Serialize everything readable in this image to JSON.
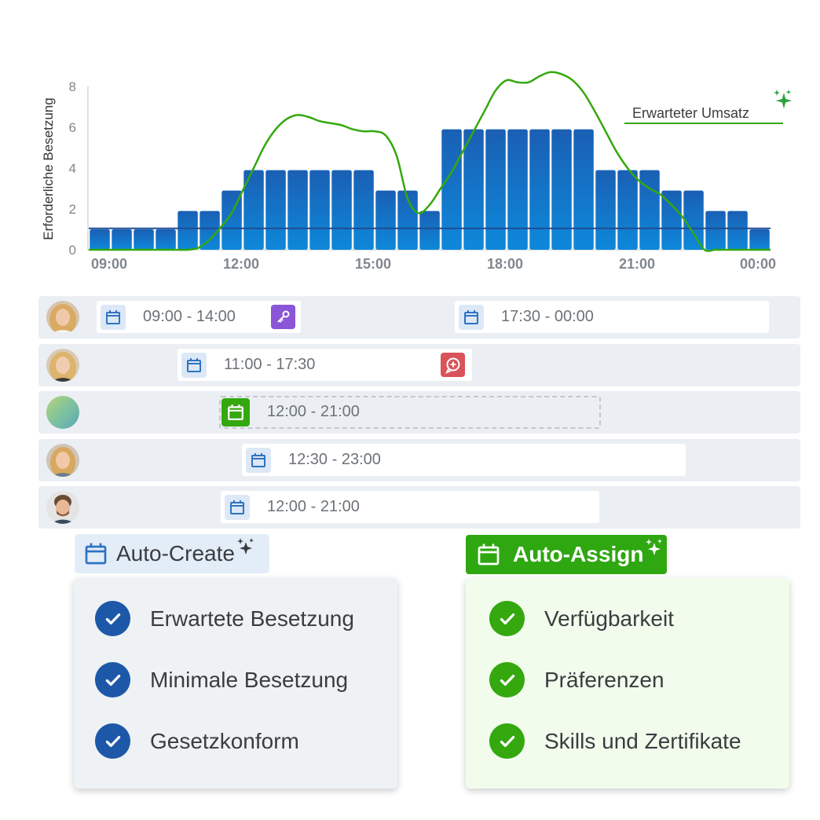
{
  "chart_data": {
    "type": "bar",
    "ylabel": "Erforderliche Besetzung",
    "ylim": [
      0,
      8
    ],
    "yticks": [
      "0",
      "2",
      "4",
      "6",
      "8"
    ],
    "xticks": [
      "09:00",
      "12:00",
      "15:00",
      "18:00",
      "21:00",
      "00:00"
    ],
    "categories": [
      "09:00",
      "09:30",
      "10:00",
      "10:30",
      "11:00",
      "11:30",
      "12:00",
      "12:30",
      "13:00",
      "13:30",
      "14:00",
      "14:30",
      "15:00",
      "15:30",
      "16:00",
      "16:30",
      "17:00",
      "17:30",
      "18:00",
      "18:30",
      "19:00",
      "19:30",
      "20:00",
      "20:30",
      "21:00",
      "21:30",
      "22:00",
      "22:30",
      "23:00",
      "23:30",
      "00:00"
    ],
    "values": [
      1,
      1,
      1,
      1,
      1.9,
      1.9,
      2.9,
      3.9,
      3.9,
      3.9,
      3.9,
      3.9,
      3.9,
      2.9,
      2.9,
      1.9,
      5.9,
      5.9,
      5.9,
      5.9,
      5.9,
      5.9,
      5.9,
      3.9,
      3.9,
      3.9,
      2.9,
      2.9,
      1.9,
      1.9,
      1
    ],
    "minimum_line": 1.05,
    "series": [
      {
        "name": "Erwarteter Umsatz",
        "type": "line",
        "x": [
          0,
          1.5,
          2,
          3,
          3.5,
          4,
          4.5,
          5,
          5.5,
          6,
          6.5,
          7,
          7.5,
          8,
          8.5,
          9,
          9.5,
          10,
          10.5,
          11,
          11.5,
          12,
          12.5,
          13,
          13.5,
          14,
          14.5,
          15,
          15.5,
          16,
          16.5,
          17,
          17.5,
          18,
          18.5,
          19,
          19.5,
          20,
          20.5,
          21,
          21.5,
          22,
          22.5,
          23,
          23.5,
          24,
          24.5,
          25,
          25.5,
          26,
          26.5,
          27,
          27.5,
          28,
          28.5,
          29,
          29.5,
          30,
          30.5,
          31
        ],
        "values": [
          0,
          0,
          0,
          0,
          0,
          0,
          0,
          0.1,
          0.5,
          1.1,
          1.8,
          2.9,
          4,
          5.1,
          5.9,
          6.4,
          6.6,
          6.5,
          6.3,
          6.2,
          6.1,
          5.9,
          5.8,
          5.8,
          5.6,
          4.6,
          2.5,
          1.8,
          2.2,
          3,
          3.8,
          4.8,
          5.8,
          6.8,
          7.8,
          8.3,
          8.2,
          8.2,
          8.5,
          8.7,
          8.6,
          8.3,
          7.7,
          6.8,
          5.8,
          4.8,
          4,
          3.4,
          3,
          2.7,
          2.2,
          1.6,
          0.8,
          0,
          0,
          0,
          0,
          0,
          0,
          0
        ]
      }
    ],
    "annotation": "Erwarteter Umsatz"
  },
  "colors": {
    "bar_top": "#1a5fb4",
    "bar_bottom": "#0e88da",
    "line": "#34a80e",
    "min_line": "#1e4d92",
    "sparkle": "#2ba23c"
  },
  "schedule": {
    "rows": [
      {
        "avatar": "woman-photo-1",
        "shifts": [
          {
            "time": "09:00 - 14:00",
            "badge": "key-icon",
            "badge_color": "#8a55d6"
          },
          {
            "time": "17:30 - 00:00"
          }
        ]
      },
      {
        "avatar": "woman-photo-2",
        "shifts": [
          {
            "time": "11:00 - 17:30",
            "badge": "add-comment-icon",
            "badge_color": "#d9535a"
          }
        ]
      },
      {
        "avatar": "unassigned-gradient",
        "shifts": [
          {
            "time": "12:00 - 21:00",
            "style": "open-shift"
          }
        ]
      },
      {
        "avatar": "woman-photo-3",
        "shifts": [
          {
            "time": "12:30 - 23:00"
          }
        ]
      },
      {
        "avatar": "man-photo",
        "shifts": [
          {
            "time": "12:00 - 21:00"
          }
        ]
      }
    ]
  },
  "auto_create": {
    "label": "Auto-Create",
    "icon": "calendar-icon",
    "items": [
      "Erwartete Besetzung",
      "Minimale Besetzung",
      "Gesetzkonform"
    ]
  },
  "auto_assign": {
    "label": "Auto-Assign",
    "icon": "calendar-icon",
    "items": [
      "Verfügbarkeit",
      "Präferenzen",
      "Skills und Zertifikate"
    ]
  }
}
